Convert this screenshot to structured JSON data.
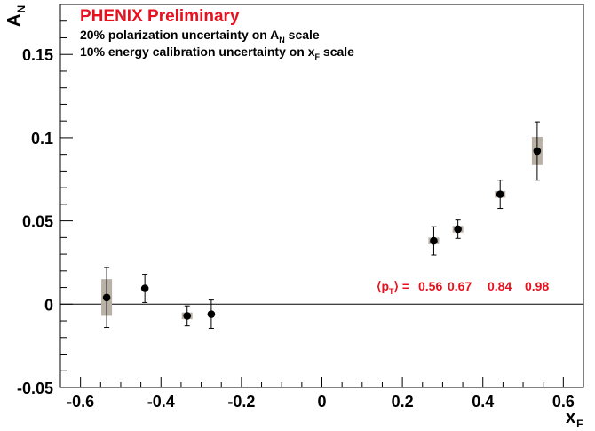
{
  "chart_data": {
    "type": "scatter",
    "title": "PHENIX Preliminary",
    "notes": [
      {
        "pre": "20% polarization uncertainty on A",
        "sub": "N",
        "post": " scale"
      },
      {
        "pre": "10% energy calibration uncertainty on x",
        "sub": "F",
        "post": " scale"
      }
    ],
    "ylabel": {
      "main": "A",
      "sub": "N"
    },
    "xlabel": {
      "main": "x",
      "sub": "F"
    },
    "xlim": [
      -0.65,
      0.65
    ],
    "ylim": [
      -0.05,
      0.18
    ],
    "xticks": [
      -0.6,
      -0.4,
      -0.2,
      0,
      0.2,
      0.4,
      0.6
    ],
    "xtick_labels": [
      "-0.6",
      "-0.4",
      "-0.2",
      "0",
      "0.2",
      "0.4",
      "0.6"
    ],
    "yticks": [
      -0.05,
      0,
      0.05,
      0.1,
      0.15
    ],
    "ytick_labels": [
      "-0.05",
      "0",
      "0.05",
      "0.1",
      "0.15"
    ],
    "grid": false,
    "points": [
      {
        "x": -0.535,
        "y": 0.004,
        "err": 0.018,
        "sys": 0.011
      },
      {
        "x": -0.44,
        "y": 0.0095,
        "err": 0.0085,
        "sys": 0.001
      },
      {
        "x": -0.335,
        "y": -0.007,
        "err": 0.006,
        "sys": 0.002
      },
      {
        "x": -0.275,
        "y": -0.006,
        "err": 0.0085,
        "sys": 0.001
      },
      {
        "x": 0.278,
        "y": 0.038,
        "err": 0.0085,
        "sys": 0.002
      },
      {
        "x": 0.338,
        "y": 0.045,
        "err": 0.0055,
        "sys": 0.002
      },
      {
        "x": 0.443,
        "y": 0.066,
        "err": 0.0085,
        "sys": 0.002
      },
      {
        "x": 0.535,
        "y": 0.092,
        "err": 0.0175,
        "sys": 0.0085
      }
    ],
    "pt_annotation": {
      "label": "⟨p",
      "label_sub": "T",
      "label_post": "⟩ =",
      "values": [
        "0.56",
        "0.67",
        "0.84",
        "0.98"
      ]
    },
    "colors": {
      "marker": "#000000",
      "sys_box": "#b9b0a6",
      "annotation": "#e8101e"
    }
  }
}
